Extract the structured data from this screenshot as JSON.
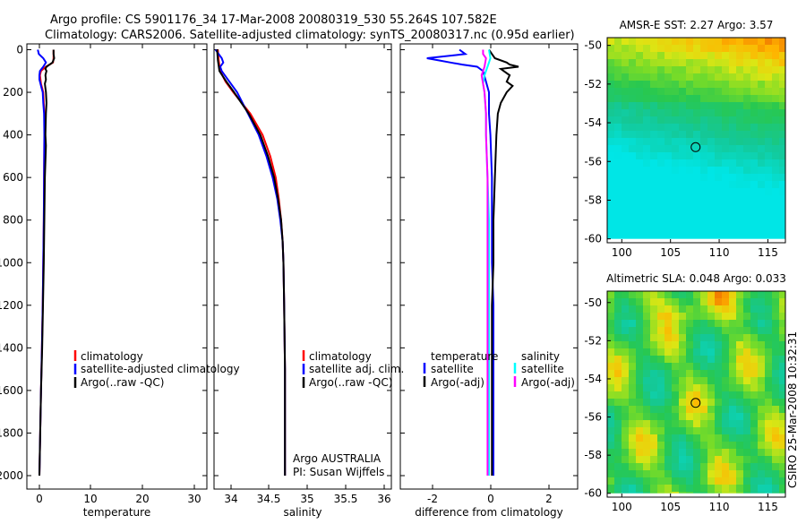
{
  "header": {
    "line1": "Argo profile: CS 5901176_34 17-Mar-2008 20080319_530 55.264S 107.582E",
    "line2": "Climatology: CARS2006. Satellite-adjusted climatology: synTS_20080317.nc (0.95d earlier)"
  },
  "colors": {
    "climatology": "#ff0000",
    "satellite": "#0000ff",
    "argo": "#000000",
    "sal_satellite": "#00ffff",
    "sal_argo": "#ff00ff"
  },
  "footer_credit": "CSIRO 25-Mar-2008 10:32:31",
  "chart_data": [
    {
      "id": "temperature",
      "type": "line",
      "xlabel": "temperature",
      "xlim": [
        -1,
        32
      ],
      "ylim": [
        0,
        2060
      ],
      "y_inverted": true,
      "xticks": [
        "0",
        "10",
        "20",
        "30"
      ],
      "yticks": [
        "0",
        "200",
        "400",
        "600",
        "800",
        "1000",
        "1200",
        "1400",
        "1600",
        "1800",
        "2000"
      ],
      "legend": [
        "climatology",
        "satellite-adjusted climatology",
        "Argo(..raw -QC)"
      ],
      "series": [
        {
          "name": "climatology",
          "color": "climatology",
          "depth": [
            0,
            20,
            40,
            60,
            80,
            100,
            120,
            140,
            160,
            180,
            200,
            250,
            300,
            400,
            600,
            800,
            1000,
            1200,
            1400,
            1600,
            1800,
            2000
          ],
          "values": [
            3.9,
            3.9,
            3.9,
            3.8,
            2.5,
            1.6,
            1.4,
            1.5,
            1.6,
            1.8,
            2.0,
            2.1,
            2.2,
            2.2,
            2.15,
            2.1,
            2.0,
            1.9,
            1.75,
            1.6,
            1.45,
            1.3
          ]
        },
        {
          "name": "satellite-adjusted climatology",
          "color": "satellite",
          "depth": [
            0,
            20,
            40,
            60,
            80,
            100,
            120,
            140,
            160,
            180,
            200,
            250,
            300,
            400,
            600,
            800,
            1000,
            1200,
            1400,
            1600,
            1800,
            2000
          ],
          "values": [
            1.0,
            1.2,
            2.0,
            2.5,
            2.0,
            1.4,
            1.3,
            1.3,
            1.5,
            1.7,
            1.9,
            2.0,
            2.15,
            2.2,
            2.15,
            2.1,
            2.0,
            1.9,
            1.75,
            1.6,
            1.45,
            1.3
          ]
        },
        {
          "name": "Argo(..raw -QC)",
          "color": "argo",
          "depth": [
            0,
            20,
            40,
            60,
            80,
            90,
            100,
            120,
            140,
            160,
            180,
            200,
            250,
            300,
            400,
            450,
            600,
            800,
            1000,
            1200,
            1400,
            1600,
            1800,
            2000
          ],
          "values": [
            3.9,
            3.9,
            4.0,
            3.7,
            2.6,
            2.4,
            2.6,
            2.4,
            2.5,
            2.3,
            2.4,
            2.5,
            2.6,
            2.5,
            2.4,
            2.5,
            2.3,
            2.2,
            2.1,
            1.95,
            1.8,
            1.6,
            1.45,
            1.3
          ]
        }
      ]
    },
    {
      "id": "salinity",
      "type": "line",
      "xlabel": "salinity",
      "xlim": [
        33.8,
        36.1
      ],
      "ylim": [
        0,
        2060
      ],
      "y_inverted": true,
      "xticks": [
        "34",
        "34.5",
        "35",
        "35.5",
        "36"
      ],
      "legend": [
        "climatology",
        "satellite adj. clim.",
        "Argo(..raw -QC)"
      ],
      "annotation": [
        "Argo AUSTRALIA",
        "PI: Susan Wijffels"
      ],
      "series": [
        {
          "name": "climatology",
          "color": "climatology",
          "depth": [
            0,
            50,
            100,
            150,
            200,
            300,
            400,
            500,
            600,
            700,
            800,
            900,
            1000,
            1200,
            1500,
            2000
          ],
          "values": [
            33.85,
            33.86,
            33.88,
            33.95,
            34.05,
            34.27,
            34.43,
            34.53,
            34.6,
            34.64,
            34.67,
            34.69,
            34.7,
            34.71,
            34.72,
            34.72
          ]
        },
        {
          "name": "satellite adj. clim.",
          "color": "satellite",
          "depth": [
            0,
            20,
            40,
            60,
            80,
            100,
            150,
            200,
            300,
            400,
            500,
            600,
            700,
            800,
            900,
            1000,
            1200,
            1500,
            2000
          ],
          "values": [
            33.82,
            33.86,
            33.9,
            33.92,
            33.88,
            33.9,
            34.0,
            34.1,
            34.24,
            34.38,
            34.48,
            34.56,
            34.62,
            34.66,
            34.69,
            34.7,
            34.71,
            34.72,
            34.72
          ]
        },
        {
          "name": "Argo(..raw -QC)",
          "color": "argo",
          "depth": [
            0,
            50,
            100,
            150,
            200,
            300,
            400,
            500,
            600,
            700,
            800,
            900,
            1000,
            1200,
            1500,
            2000
          ],
          "values": [
            33.84,
            33.85,
            33.87,
            33.96,
            34.06,
            34.25,
            34.4,
            34.5,
            34.58,
            34.63,
            34.67,
            34.69,
            34.7,
            34.71,
            34.72,
            34.72
          ]
        }
      ]
    },
    {
      "id": "difference",
      "type": "line",
      "xlabel": "difference from climatology",
      "xlim": [
        -3,
        3
      ],
      "ylim": [
        0,
        2060
      ],
      "y_inverted": true,
      "xticks": [
        "-2",
        "0",
        "2"
      ],
      "legend_headers": [
        "temperature",
        "salinity"
      ],
      "legend": [
        "satellite",
        "Argo(-adj)",
        "satellite",
        "Argo(-adj)"
      ],
      "series": [
        {
          "name": "temperature satellite",
          "color": "satellite",
          "depth": [
            0,
            20,
            40,
            50,
            60,
            70,
            80,
            100,
            150,
            200,
            300,
            400,
            600,
            800,
            1000,
            1200,
            1400,
            1600,
            1800,
            2000
          ],
          "values": [
            -1.0,
            -0.8,
            -2.1,
            -1.7,
            -1.3,
            -0.9,
            -0.4,
            -0.2,
            -0.1,
            0.0,
            0.0,
            0.05,
            0.1,
            0.1,
            0.1,
            0.15,
            0.15,
            0.15,
            0.15,
            0.15
          ]
        },
        {
          "name": "temperature Argo(-adj)",
          "color": "argo",
          "depth": [
            0,
            20,
            40,
            60,
            70,
            80,
            90,
            100,
            120,
            150,
            170,
            200,
            250,
            300,
            400,
            600,
            800,
            1000,
            1200,
            1400,
            1600,
            1800,
            2000
          ],
          "values": [
            0.0,
            0.1,
            0.2,
            0.6,
            0.7,
            1.0,
            0.4,
            0.5,
            0.7,
            0.6,
            0.8,
            0.6,
            0.4,
            0.3,
            0.25,
            0.2,
            0.15,
            0.15,
            0.1,
            0.1,
            0.1,
            0.1,
            0.1
          ]
        },
        {
          "name": "salinity satellite",
          "color": "sal_satellite",
          "depth": [
            0,
            40,
            80,
            120,
            160,
            200,
            300,
            400,
            600,
            800,
            1000,
            1200,
            1400,
            1600,
            1800,
            2000
          ],
          "values": [
            0.0,
            0.05,
            -0.05,
            -0.15,
            -0.2,
            -0.15,
            -0.1,
            -0.1,
            -0.05,
            0.0,
            0.0,
            0.0,
            0.0,
            0.0,
            0.0,
            0.0
          ]
        },
        {
          "name": "salinity Argo(-adj)",
          "color": "sal_argo",
          "depth": [
            0,
            20,
            40,
            80,
            120,
            160,
            200,
            300,
            400,
            600,
            800,
            1000,
            1200,
            1400,
            1600,
            1800,
            2000
          ],
          "values": [
            -0.2,
            -0.2,
            -0.1,
            -0.15,
            -0.25,
            -0.2,
            -0.15,
            -0.1,
            -0.1,
            -0.05,
            -0.05,
            -0.05,
            -0.05,
            -0.05,
            -0.05,
            -0.05,
            -0.05
          ]
        }
      ]
    },
    {
      "id": "sst-map",
      "type": "heatmap",
      "title": "AMSR-E SST: 2.27 Argo: 3.57",
      "xlim": [
        98.5,
        116.8
      ],
      "ylim": [
        -60.2,
        -49.6
      ],
      "xticks": [
        "100",
        "105",
        "110",
        "115"
      ],
      "yticks": [
        "-50",
        "-52",
        "-54",
        "-56",
        "-58",
        "-60"
      ],
      "xtick_values": [
        100,
        105,
        110,
        115
      ],
      "ytick_values": [
        -50,
        -52,
        -54,
        -56,
        -58,
        -60
      ],
      "marker": {
        "lon": 107.58,
        "lat": -55.26
      },
      "missing_below_lat": -60.0
    },
    {
      "id": "sla-map",
      "type": "heatmap",
      "title": "Altimetric SLA: 0.048 Argo: 0.033",
      "xlim": [
        98.5,
        116.8
      ],
      "ylim": [
        -60.2,
        -49.4
      ],
      "xticks": [
        "100",
        "105",
        "110",
        "115"
      ],
      "yticks": [
        "-50",
        "-52",
        "-54",
        "-56",
        "-58",
        "-60"
      ],
      "xtick_values": [
        100,
        105,
        110,
        115
      ],
      "ytick_values": [
        -50,
        -52,
        -54,
        -56,
        -58,
        -60
      ],
      "marker": {
        "lon": 107.58,
        "lat": -55.26
      },
      "missing_below_lat": -60.0
    }
  ]
}
